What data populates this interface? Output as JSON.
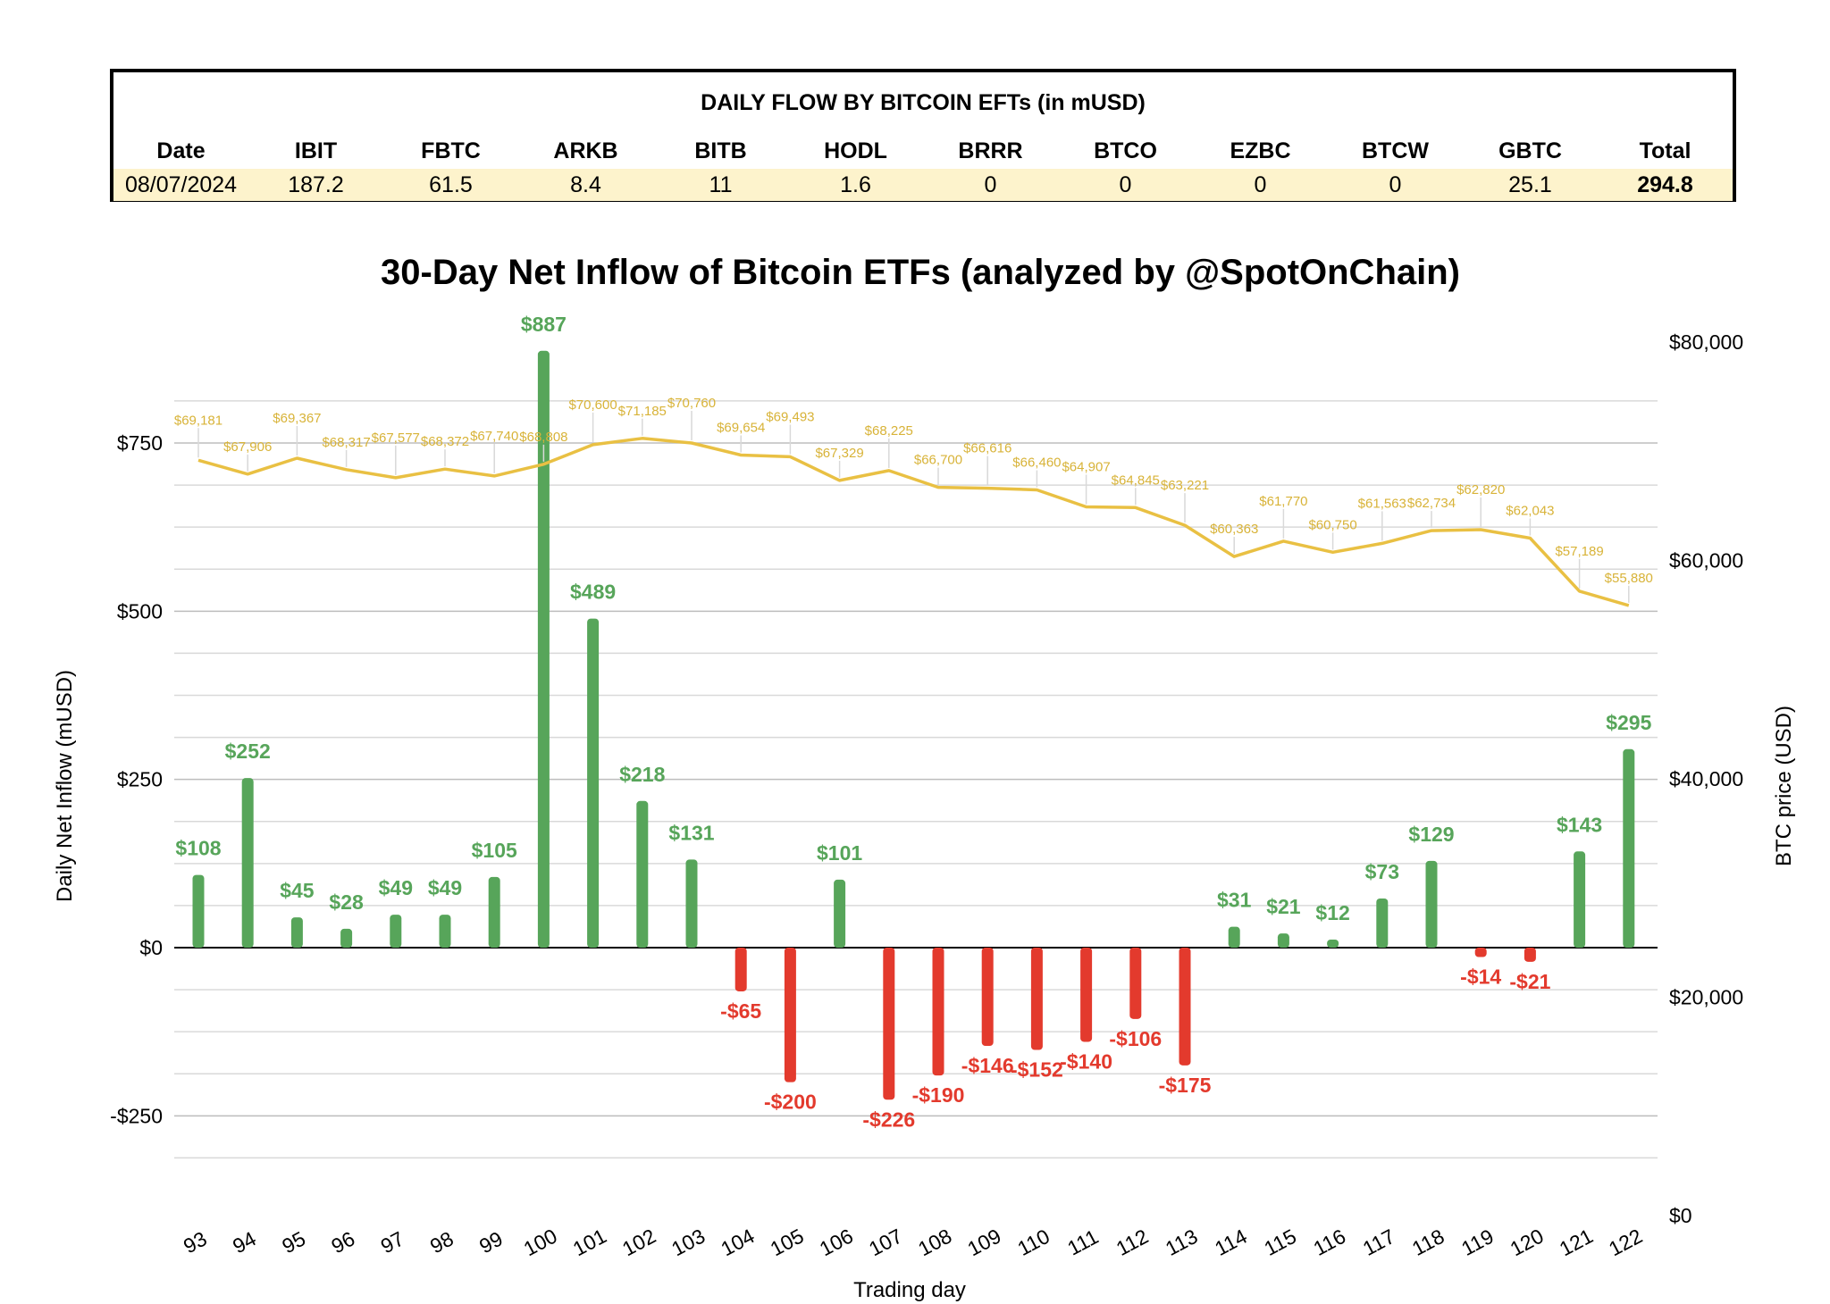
{
  "table": {
    "title": "DAILY FLOW BY BITCOIN EFTs (in mUSD)",
    "headers": [
      "Date",
      "IBIT",
      "FBTC",
      "ARKB",
      "BITB",
      "HODL",
      "BRRR",
      "BTCO",
      "EZBC",
      "BTCW",
      "GBTC",
      "Total"
    ],
    "row": [
      "08/07/2024",
      "187.2",
      "61.5",
      "8.4",
      "11",
      "1.6",
      "0",
      "0",
      "0",
      "0",
      "25.1",
      "294.8"
    ]
  },
  "chart_data": {
    "type": "bar",
    "title": "30-Day Net Inflow of Bitcoin ETFs (analyzed by @SpotOnChain)",
    "xlabel": "Trading day",
    "ylabel": "Daily Net Inflow (mUSD)",
    "ylabel_right": "BTC price (USD)",
    "ylim": [
      -333,
      888
    ],
    "ylim_right": [
      0,
      80000
    ],
    "yticks": [
      750,
      500,
      250,
      0,
      -250
    ],
    "ytick_labels": [
      "$750",
      "$500",
      "$250",
      "$0",
      "-$250"
    ],
    "yticks_right": [
      80000,
      60000,
      40000,
      20000,
      0
    ],
    "ytick_labels_right": [
      "$80,000",
      "$60,000",
      "$40,000",
      "$20,000",
      "$0"
    ],
    "colors": {
      "positive": "#57a55a",
      "negative": "#e33a2d",
      "price_line": "#e9c043",
      "price_label": "#d8b338"
    },
    "categories": [
      "93",
      "94",
      "95",
      "96",
      "97",
      "98",
      "99",
      "100",
      "101",
      "102",
      "103",
      "104",
      "105",
      "106",
      "107",
      "108",
      "109",
      "110",
      "111",
      "112",
      "113",
      "114",
      "115",
      "116",
      "117",
      "118",
      "119",
      "120",
      "121",
      "122"
    ],
    "series": [
      {
        "name": "Daily Net Inflow",
        "values": [
          108,
          252,
          45,
          28,
          49,
          49,
          105,
          887,
          489,
          218,
          131,
          -65,
          -200,
          101,
          -226,
          -190,
          -146,
          -152,
          -140,
          -106,
          -175,
          31,
          21,
          12,
          73,
          129,
          -14,
          -21,
          143,
          295
        ],
        "labels": [
          "$108",
          "$252",
          "$45",
          "$28",
          "$49",
          "$49",
          "$105",
          "$887",
          "$489",
          "$218",
          "$131",
          "-$65",
          "-$200",
          "$101",
          "-$226",
          "-$190",
          "-$146",
          "-$152",
          "-$140",
          "-$106",
          "-$175",
          "$31",
          "$21",
          "$12",
          "$73",
          "$129",
          "-$14",
          "-$21",
          "$143",
          "$295"
        ]
      },
      {
        "name": "BTC price",
        "axis": "right",
        "values": [
          69181,
          67906,
          69367,
          68317,
          67577,
          68372,
          67740,
          68808,
          70600,
          71185,
          70760,
          69654,
          69493,
          67329,
          68225,
          66700,
          66616,
          66460,
          64907,
          64845,
          63221,
          60363,
          61770,
          60750,
          61563,
          62734,
          62820,
          62043,
          57189,
          55880
        ],
        "labels": [
          "$69,181",
          "$67,906",
          "$69,367",
          "$68,317",
          "$67,577",
          "$68,372",
          "$67,740",
          "$68,808",
          "$70,600",
          "$71,185",
          "$70,760",
          "$69,654",
          "$69,493",
          "$67,329",
          "$68,225",
          "$66,700",
          "$66,616",
          "$66,460",
          "$64,907",
          "$64,845",
          "$63,221",
          "$60,363",
          "$61,770",
          "$60,750",
          "$61,563",
          "$62,734",
          "$62,820",
          "$62,043",
          "$57,189",
          "$55,880"
        ]
      }
    ]
  }
}
